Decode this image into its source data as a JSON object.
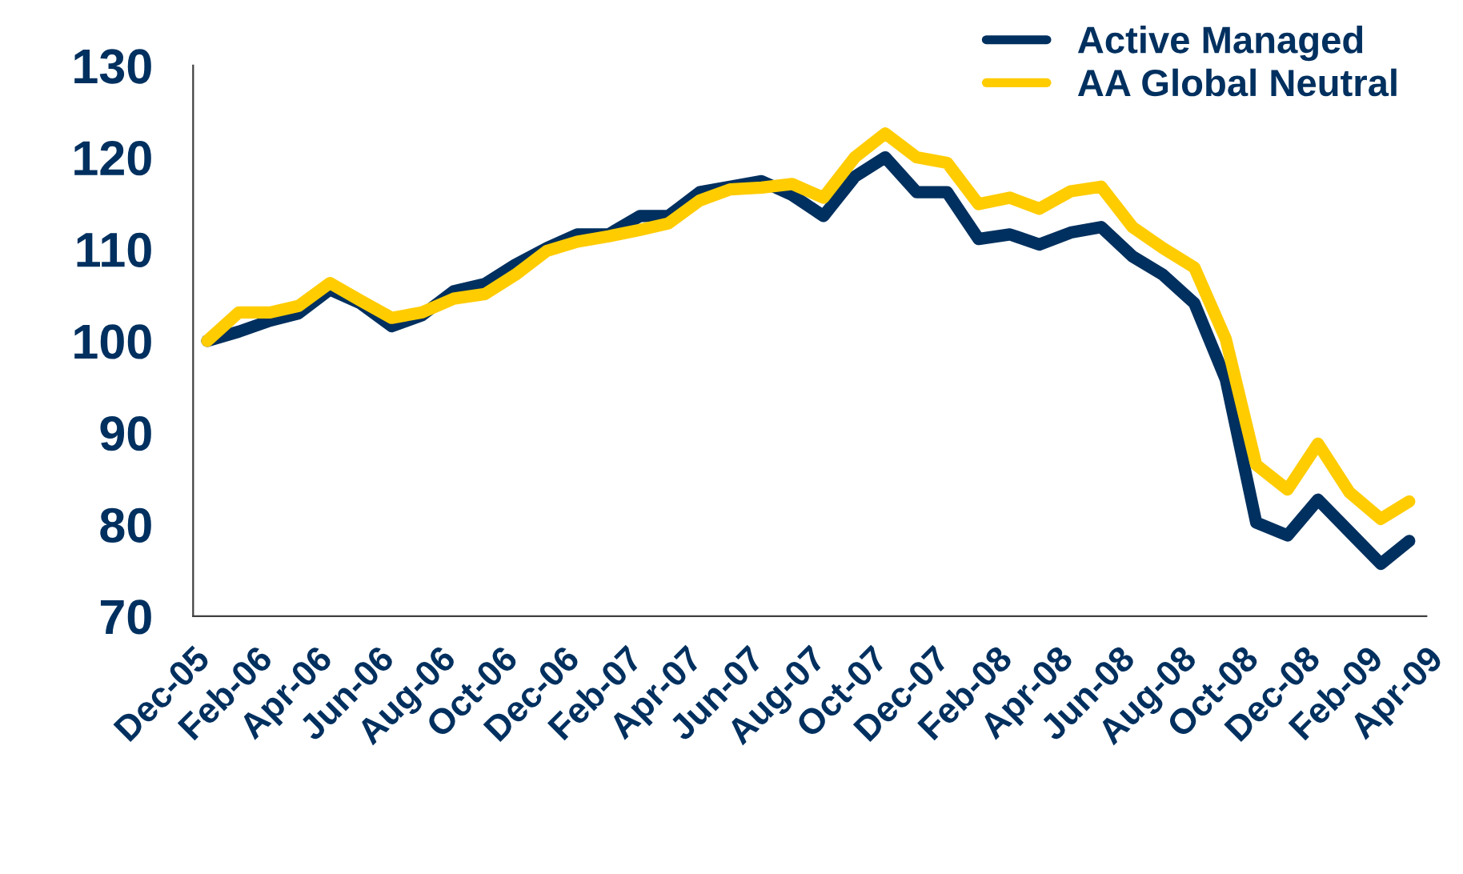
{
  "chart_data": {
    "type": "line",
    "x": [
      "2005-12-15",
      "2006-01-15",
      "2006-02-15",
      "2006-03-15",
      "2006-04-15",
      "2006-05-15",
      "2006-06-15",
      "2006-07-15",
      "2006-08-15",
      "2006-09-15",
      "2006-10-15",
      "2006-11-15",
      "2006-12-15",
      "2007-01-15",
      "2007-02-15",
      "2007-03-15",
      "2007-04-15",
      "2007-05-15",
      "2007-06-15",
      "2007-07-15",
      "2007-08-15",
      "2007-09-15",
      "2007-10-15",
      "2007-11-15",
      "2007-12-15",
      "2008-01-15",
      "2008-02-15",
      "2008-03-15",
      "2008-04-15",
      "2008-05-15",
      "2008-06-15",
      "2008-07-15",
      "2008-08-15",
      "2008-09-15",
      "2008-10-15",
      "2008-11-15",
      "2008-12-15",
      "2009-01-15",
      "2009-02-15",
      "2009-03-15"
    ],
    "series": [
      {
        "name": "Active Managed",
        "color": "#00305f",
        "values": [
          100,
          101.0,
          102.2,
          103.0,
          105.6,
          104.1,
          101.6,
          102.8,
          105.4,
          106.2,
          108.3,
          110.1,
          111.6,
          111.6,
          113.6,
          113.6,
          116.2,
          116.8,
          117.4,
          115.9,
          113.6,
          117.9,
          120.0,
          116.2,
          116.2,
          111.1,
          111.6,
          110.5,
          111.8,
          112.4,
          109.2,
          107.2,
          104.1,
          95.8,
          80.2,
          78.8,
          82.7,
          79.2,
          75.7,
          78.2
        ]
      },
      {
        "name": "AA Global Neutral",
        "color": "#ffcc00",
        "values": [
          100,
          103.1,
          103.1,
          103.8,
          106.3,
          104.4,
          102.5,
          103.1,
          104.6,
          105.1,
          107.2,
          109.8,
          110.8,
          111.4,
          112.1,
          112.8,
          115.3,
          116.5,
          116.7,
          117.1,
          115.6,
          120.0,
          122.6,
          120.0,
          119.4,
          114.9,
          115.6,
          114.4,
          116.3,
          116.8,
          112.4,
          110.1,
          108.0,
          100.2,
          86.5,
          83.8,
          88.8,
          83.5,
          80.6,
          82.5
        ]
      }
    ],
    "xlim": [
      "2005-12",
      "2009-04"
    ],
    "xticks": [
      {
        "value": "2005-12",
        "label": "Dec-05"
      },
      {
        "value": "2006-02",
        "label": "Feb-06"
      },
      {
        "value": "2006-04",
        "label": "Apr-06"
      },
      {
        "value": "2006-06",
        "label": "Jun-06"
      },
      {
        "value": "2006-08",
        "label": "Aug-06"
      },
      {
        "value": "2006-10",
        "label": "Oct-06"
      },
      {
        "value": "2006-12",
        "label": "Dec-06"
      },
      {
        "value": "2007-02",
        "label": "Feb-07"
      },
      {
        "value": "2007-04",
        "label": "Apr-07"
      },
      {
        "value": "2007-06",
        "label": "Jun-07"
      },
      {
        "value": "2007-08",
        "label": "Aug-07"
      },
      {
        "value": "2007-10",
        "label": "Oct-07"
      },
      {
        "value": "2007-12",
        "label": "Dec-07"
      },
      {
        "value": "2008-02",
        "label": "Feb-08"
      },
      {
        "value": "2008-04",
        "label": "Apr-08"
      },
      {
        "value": "2008-06",
        "label": "Jun-08"
      },
      {
        "value": "2008-08",
        "label": "Aug-08"
      },
      {
        "value": "2008-10",
        "label": "Oct-08"
      },
      {
        "value": "2008-12",
        "label": "Dec-08"
      },
      {
        "value": "2009-02",
        "label": "Feb-09"
      },
      {
        "value": "2009-04",
        "label": "Apr-09"
      }
    ],
    "ylim": [
      70,
      130
    ],
    "yticks": [
      70,
      80,
      90,
      100,
      110,
      120,
      130
    ],
    "grid": false,
    "legend": "top right",
    "marker": "none",
    "line_style": "solid"
  }
}
